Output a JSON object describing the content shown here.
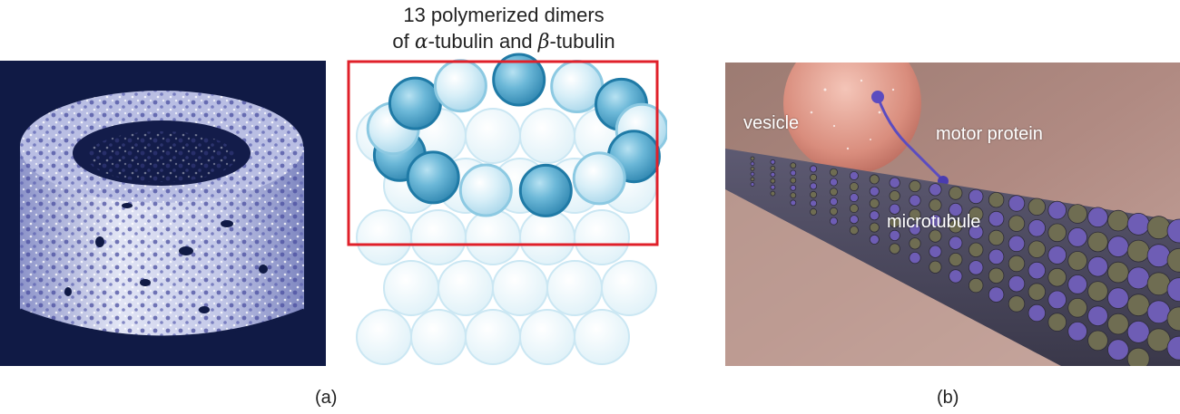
{
  "figure": {
    "diagram_title_line1": "13 polymerized dimers",
    "diagram_title_pre": "of ",
    "alpha_symbol": "α",
    "diagram_title_mid": "-tubulin and ",
    "beta_symbol": "β",
    "diagram_title_post": "-tubulin",
    "panel_a_label": "(a)",
    "panel_b_label": "(b)",
    "photo_labels": {
      "vesicle": "vesicle",
      "motor_protein": "motor protein",
      "microtubule": "microtubule"
    }
  },
  "colors": {
    "highlight_box": "#e0202a",
    "dark_subunit": "#3f98c0",
    "light_subunit": "#bfe3f1",
    "ghost_subunit": "#e4f3f9",
    "cryo_background": "#101a45",
    "cryo_surface": "#c8cdea"
  }
}
